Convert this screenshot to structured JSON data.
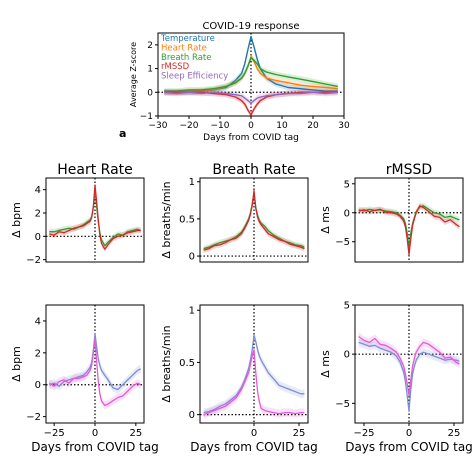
{
  "panel_letter": "a",
  "chart_data": [
    {
      "id": "main",
      "type": "line",
      "title": "COVID-19 response",
      "xlabel": "Days from COVID tag",
      "ylabel": "Average Z-score",
      "xlim": [
        -30,
        30
      ],
      "ylim": [
        -1,
        2.5
      ],
      "xticks": [
        -30,
        -20,
        -10,
        0,
        10,
        20,
        30
      ],
      "yticks": [
        -1,
        0,
        1,
        2
      ],
      "legend": "top-left",
      "reference_lines": {
        "x": 0,
        "y": 0
      },
      "series": [
        {
          "name": "Temperature",
          "color": "#1f77b4",
          "x": [
            -28,
            -24,
            -20,
            -16,
            -12,
            -8,
            -5,
            -3,
            -2,
            -1,
            0,
            1,
            2,
            3,
            5,
            8,
            12,
            16,
            20,
            24,
            28
          ],
          "y": [
            0.0,
            0.0,
            0.0,
            0.05,
            0.1,
            0.2,
            0.5,
            0.8,
            1.2,
            1.8,
            2.35,
            1.9,
            1.4,
            1.0,
            0.6,
            0.35,
            0.2,
            0.15,
            0.1,
            0.05,
            0.05
          ]
        },
        {
          "name": "Heart Rate",
          "color": "#ff7f0e",
          "x": [
            -28,
            -24,
            -20,
            -16,
            -12,
            -8,
            -5,
            -3,
            -2,
            -1,
            0,
            1,
            2,
            3,
            5,
            8,
            12,
            16,
            20,
            24,
            28
          ],
          "y": [
            0.0,
            0.0,
            0.05,
            0.05,
            0.1,
            0.25,
            0.4,
            0.6,
            0.8,
            1.1,
            1.5,
            1.3,
            1.0,
            0.8,
            0.6,
            0.5,
            0.4,
            0.3,
            0.25,
            0.2,
            0.15
          ]
        },
        {
          "name": "Breath Rate",
          "color": "#2ca02c",
          "x": [
            -28,
            -24,
            -20,
            -16,
            -12,
            -8,
            -5,
            -3,
            -2,
            -1,
            0,
            1,
            2,
            3,
            5,
            8,
            12,
            16,
            20,
            24,
            28
          ],
          "y": [
            0.05,
            0.05,
            0.1,
            0.1,
            0.15,
            0.25,
            0.4,
            0.6,
            0.8,
            1.1,
            1.45,
            1.35,
            1.2,
            1.0,
            0.85,
            0.75,
            0.65,
            0.55,
            0.45,
            0.35,
            0.25
          ]
        },
        {
          "name": "rMSSD",
          "color": "#d62728",
          "x": [
            -28,
            -24,
            -20,
            -16,
            -12,
            -8,
            -5,
            -3,
            -2,
            -1,
            0,
            1,
            2,
            3,
            5,
            8,
            12,
            16,
            20,
            24,
            28
          ],
          "y": [
            0.0,
            0.0,
            0.0,
            0.0,
            -0.05,
            -0.1,
            -0.2,
            -0.35,
            -0.5,
            -0.75,
            -0.95,
            -0.7,
            -0.5,
            -0.35,
            -0.2,
            -0.1,
            -0.05,
            0.0,
            0.0,
            0.0,
            0.0
          ]
        },
        {
          "name": "Sleep Efficiency",
          "color": "#9467bd",
          "x": [
            -28,
            -24,
            -20,
            -16,
            -12,
            -8,
            -5,
            -3,
            -2,
            -1,
            0,
            1,
            2,
            3,
            5,
            8,
            12,
            16,
            20,
            24,
            28
          ],
          "y": [
            0.0,
            -0.05,
            0.0,
            -0.05,
            0.0,
            -0.05,
            -0.1,
            -0.15,
            -0.25,
            -0.35,
            -0.45,
            -0.35,
            -0.25,
            -0.2,
            -0.15,
            -0.1,
            -0.05,
            -0.05,
            0.0,
            -0.05,
            0.0
          ]
        }
      ]
    },
    {
      "id": "hr-top",
      "type": "line",
      "title": "Heart Rate",
      "xlabel": "",
      "ylabel": "Δ bpm",
      "xlim": [
        -30,
        30
      ],
      "ylim": [
        -2.2,
        5
      ],
      "yticks": [
        -2,
        0,
        2,
        4
      ],
      "reference_lines": {
        "x": 0,
        "y": 0
      },
      "series": [
        {
          "color": "#2ca02c",
          "x": [
            -28,
            -25,
            -22,
            -19,
            -16,
            -13,
            -10,
            -7,
            -5,
            -3,
            -2,
            -1,
            0,
            1,
            2,
            3,
            4,
            6,
            8,
            11,
            14,
            17,
            20,
            23,
            26,
            28
          ],
          "y": [
            0.4,
            0.4,
            0.5,
            0.6,
            0.7,
            0.6,
            0.8,
            1.0,
            1.2,
            1.4,
            1.7,
            2.5,
            4.0,
            2.6,
            1.2,
            0.3,
            -0.3,
            -0.8,
            -0.5,
            -0.1,
            0.2,
            0.1,
            0.4,
            0.5,
            0.6,
            0.5
          ]
        },
        {
          "color": "#d62728",
          "x": [
            -28,
            -25,
            -22,
            -19,
            -16,
            -13,
            -10,
            -7,
            -5,
            -3,
            -2,
            -1,
            0,
            1,
            2,
            3,
            4,
            6,
            8,
            11,
            14,
            17,
            20,
            23,
            26,
            28
          ],
          "y": [
            0.2,
            0.1,
            0.4,
            0.3,
            0.5,
            0.7,
            0.8,
            0.9,
            1.1,
            1.3,
            1.6,
            2.6,
            4.4,
            3.0,
            1.4,
            0.1,
            -0.6,
            -1.1,
            -0.7,
            -0.2,
            0.0,
            0.1,
            0.3,
            0.4,
            0.5,
            0.5
          ]
        }
      ]
    },
    {
      "id": "br-top",
      "type": "line",
      "title": "Breath Rate",
      "xlabel": "",
      "ylabel": "Δ breaths/min",
      "xlim": [
        -30,
        30
      ],
      "ylim": [
        -0.08,
        1.05
      ],
      "yticks": [
        0.0,
        0.5,
        1.0
      ],
      "reference_lines": {
        "x": 0,
        "y": 0
      },
      "series": [
        {
          "color": "#2ca02c",
          "x": [
            -28,
            -25,
            -22,
            -19,
            -16,
            -13,
            -10,
            -7,
            -5,
            -3,
            -2,
            -1,
            0,
            1,
            2,
            3,
            4,
            6,
            8,
            11,
            14,
            17,
            20,
            23,
            26,
            28
          ],
          "y": [
            0.1,
            0.12,
            0.15,
            0.18,
            0.2,
            0.22,
            0.26,
            0.32,
            0.4,
            0.5,
            0.58,
            0.7,
            0.85,
            0.65,
            0.55,
            0.48,
            0.44,
            0.4,
            0.34,
            0.28,
            0.24,
            0.2,
            0.18,
            0.15,
            0.14,
            0.12
          ]
        },
        {
          "color": "#d62728",
          "x": [
            -28,
            -25,
            -22,
            -19,
            -16,
            -13,
            -10,
            -7,
            -5,
            -3,
            -2,
            -1,
            0,
            1,
            2,
            3,
            4,
            6,
            8,
            11,
            14,
            17,
            20,
            23,
            26,
            28
          ],
          "y": [
            0.08,
            0.1,
            0.14,
            0.15,
            0.18,
            0.22,
            0.24,
            0.3,
            0.38,
            0.48,
            0.56,
            0.68,
            0.88,
            0.64,
            0.52,
            0.46,
            0.42,
            0.36,
            0.3,
            0.26,
            0.22,
            0.2,
            0.16,
            0.14,
            0.12,
            0.1
          ]
        }
      ]
    },
    {
      "id": "rm-top",
      "type": "line",
      "title": "rMSSD",
      "xlabel": "",
      "ylabel": "Δ ms",
      "xlim": [
        -30,
        30
      ],
      "ylim": [
        -8.5,
        6
      ],
      "yticks": [
        -5,
        0,
        5
      ],
      "reference_lines": {
        "x": 0,
        "y": 0
      },
      "series": [
        {
          "color": "#2ca02c",
          "x": [
            -28,
            -25,
            -22,
            -19,
            -16,
            -13,
            -10,
            -7,
            -5,
            -3,
            -2,
            -1,
            0,
            1,
            2,
            3,
            4,
            6,
            8,
            11,
            14,
            17,
            20,
            23,
            26,
            28
          ],
          "y": [
            0.5,
            0.3,
            0.6,
            0.4,
            0.5,
            0.3,
            0.2,
            0.0,
            -0.4,
            -1.0,
            -1.8,
            -3.5,
            -6.0,
            -3.5,
            -1.8,
            -0.8,
            0.2,
            1.0,
            1.2,
            0.6,
            0.0,
            -0.2,
            -0.8,
            -0.6,
            -1.0,
            -1.2
          ]
        },
        {
          "color": "#d62728",
          "x": [
            -28,
            -25,
            -22,
            -19,
            -16,
            -13,
            -10,
            -7,
            -5,
            -3,
            -2,
            -1,
            0,
            1,
            2,
            3,
            4,
            6,
            8,
            11,
            14,
            17,
            20,
            23,
            26,
            28
          ],
          "y": [
            0.3,
            0.5,
            0.2,
            0.4,
            0.6,
            0.1,
            0.0,
            -0.2,
            -0.6,
            -1.4,
            -2.4,
            -4.5,
            -7.2,
            -4.5,
            -2.2,
            -1.0,
            0.0,
            1.2,
            0.9,
            0.2,
            -0.6,
            -0.8,
            -1.6,
            -1.2,
            -2.0,
            -2.4
          ]
        }
      ]
    },
    {
      "id": "hr-bottom",
      "type": "line",
      "title": "",
      "xlabel": "Days from COVID tag",
      "ylabel": "Δ bpm",
      "xlim": [
        -30,
        30
      ],
      "ylim": [
        -2.4,
        5
      ],
      "xticks": [
        -25,
        0,
        25
      ],
      "yticks": [
        -2,
        0,
        2,
        4
      ],
      "reference_lines": {
        "x": 0,
        "y": 0
      },
      "series": [
        {
          "color": "#7b8fd4",
          "x": [
            -28,
            -25,
            -22,
            -19,
            -16,
            -13,
            -10,
            -7,
            -5,
            -3,
            -2,
            -1,
            0,
            1,
            2,
            3,
            4,
            6,
            8,
            11,
            14,
            17,
            20,
            23,
            26,
            28
          ],
          "y": [
            0.0,
            0.1,
            -0.1,
            0.2,
            0.3,
            0.4,
            0.5,
            0.6,
            0.8,
            1.1,
            1.4,
            2.2,
            3.2,
            2.4,
            1.6,
            1.2,
            0.9,
            0.6,
            0.3,
            -0.2,
            -0.3,
            0.0,
            0.3,
            0.6,
            0.9,
            1.0
          ]
        },
        {
          "color": "#e65ad8",
          "x": [
            -28,
            -25,
            -22,
            -19,
            -16,
            -13,
            -10,
            -7,
            -5,
            -3,
            -2,
            -1,
            0,
            1,
            2,
            3,
            4,
            6,
            8,
            11,
            14,
            17,
            20,
            23,
            26,
            28
          ],
          "y": [
            0.1,
            -0.1,
            0.2,
            0.3,
            0.1,
            0.4,
            0.4,
            0.5,
            0.6,
            0.9,
            1.2,
            2.0,
            2.9,
            1.5,
            0.2,
            -0.6,
            -1.0,
            -1.3,
            -1.2,
            -1.0,
            -0.8,
            -0.7,
            -0.4,
            -0.1,
            0.1,
            0.0
          ]
        }
      ]
    },
    {
      "id": "br-bottom",
      "type": "line",
      "title": "",
      "xlabel": "Days from COVID tag",
      "ylabel": "Δ breaths/min",
      "xlim": [
        -30,
        30
      ],
      "ylim": [
        -0.08,
        1.05
      ],
      "xticks": [
        0,
        25
      ],
      "yticks": [
        0.0,
        0.5,
        1.0
      ],
      "reference_lines": {
        "x": 0,
        "y": 0
      },
      "series": [
        {
          "color": "#7b8fd4",
          "x": [
            -28,
            -25,
            -22,
            -19,
            -16,
            -13,
            -10,
            -7,
            -5,
            -3,
            -2,
            -1,
            0,
            1,
            2,
            3,
            4,
            6,
            8,
            11,
            14,
            17,
            20,
            23,
            26,
            28
          ],
          "y": [
            0.02,
            0.03,
            0.05,
            0.08,
            0.1,
            0.14,
            0.18,
            0.26,
            0.34,
            0.44,
            0.52,
            0.62,
            0.76,
            0.7,
            0.62,
            0.56,
            0.52,
            0.46,
            0.4,
            0.34,
            0.28,
            0.26,
            0.24,
            0.22,
            0.2,
            0.2
          ]
        },
        {
          "color": "#e65ad8",
          "x": [
            -28,
            -25,
            -22,
            -19,
            -16,
            -13,
            -10,
            -7,
            -5,
            -3,
            -2,
            -1,
            0,
            1,
            2,
            3,
            4,
            6,
            8,
            11,
            14,
            17,
            20,
            23,
            26,
            28
          ],
          "y": [
            0.0,
            0.02,
            0.04,
            0.06,
            0.08,
            0.12,
            0.16,
            0.24,
            0.32,
            0.4,
            0.48,
            0.56,
            0.62,
            0.4,
            0.22,
            0.12,
            0.06,
            0.04,
            0.03,
            0.02,
            0.01,
            0.02,
            0.02,
            0.01,
            0.02,
            0.02
          ]
        }
      ]
    },
    {
      "id": "rm-bottom",
      "type": "line",
      "title": "",
      "xlabel": "Days from COVID tag",
      "ylabel": "Δ ms",
      "xlim": [
        -30,
        30
      ],
      "ylim": [
        -7,
        5
      ],
      "xticks": [
        -25,
        0,
        25
      ],
      "yticks": [
        -5,
        0,
        5
      ],
      "reference_lines": {
        "x": 0,
        "y": 0
      },
      "series": [
        {
          "color": "#7b8fd4",
          "x": [
            -28,
            -25,
            -22,
            -19,
            -16,
            -13,
            -10,
            -7,
            -5,
            -3,
            -2,
            -1,
            0,
            1,
            2,
            3,
            4,
            6,
            8,
            11,
            14,
            17,
            20,
            23,
            26,
            28
          ],
          "y": [
            1.2,
            1.0,
            0.8,
            0.9,
            0.6,
            0.4,
            0.2,
            -0.2,
            -0.8,
            -1.8,
            -2.8,
            -4.2,
            -5.8,
            -3.6,
            -2.0,
            -1.2,
            -0.6,
            0.0,
            0.2,
            0.0,
            -0.2,
            -0.4,
            -0.6,
            -0.5,
            -0.6,
            -0.7
          ]
        },
        {
          "color": "#e65ad8",
          "x": [
            -28,
            -25,
            -22,
            -19,
            -16,
            -13,
            -10,
            -7,
            -5,
            -3,
            -2,
            -1,
            0,
            1,
            2,
            3,
            4,
            6,
            8,
            11,
            14,
            17,
            20,
            23,
            26,
            28
          ],
          "y": [
            1.8,
            1.4,
            1.2,
            1.6,
            1.0,
            0.9,
            0.6,
            0.2,
            -0.4,
            -1.2,
            -2.0,
            -3.0,
            -4.2,
            -2.6,
            -1.2,
            -0.4,
            0.2,
            0.8,
            1.2,
            1.0,
            0.6,
            0.2,
            -0.4,
            -0.3,
            -0.8,
            -1.0
          ]
        }
      ]
    }
  ]
}
